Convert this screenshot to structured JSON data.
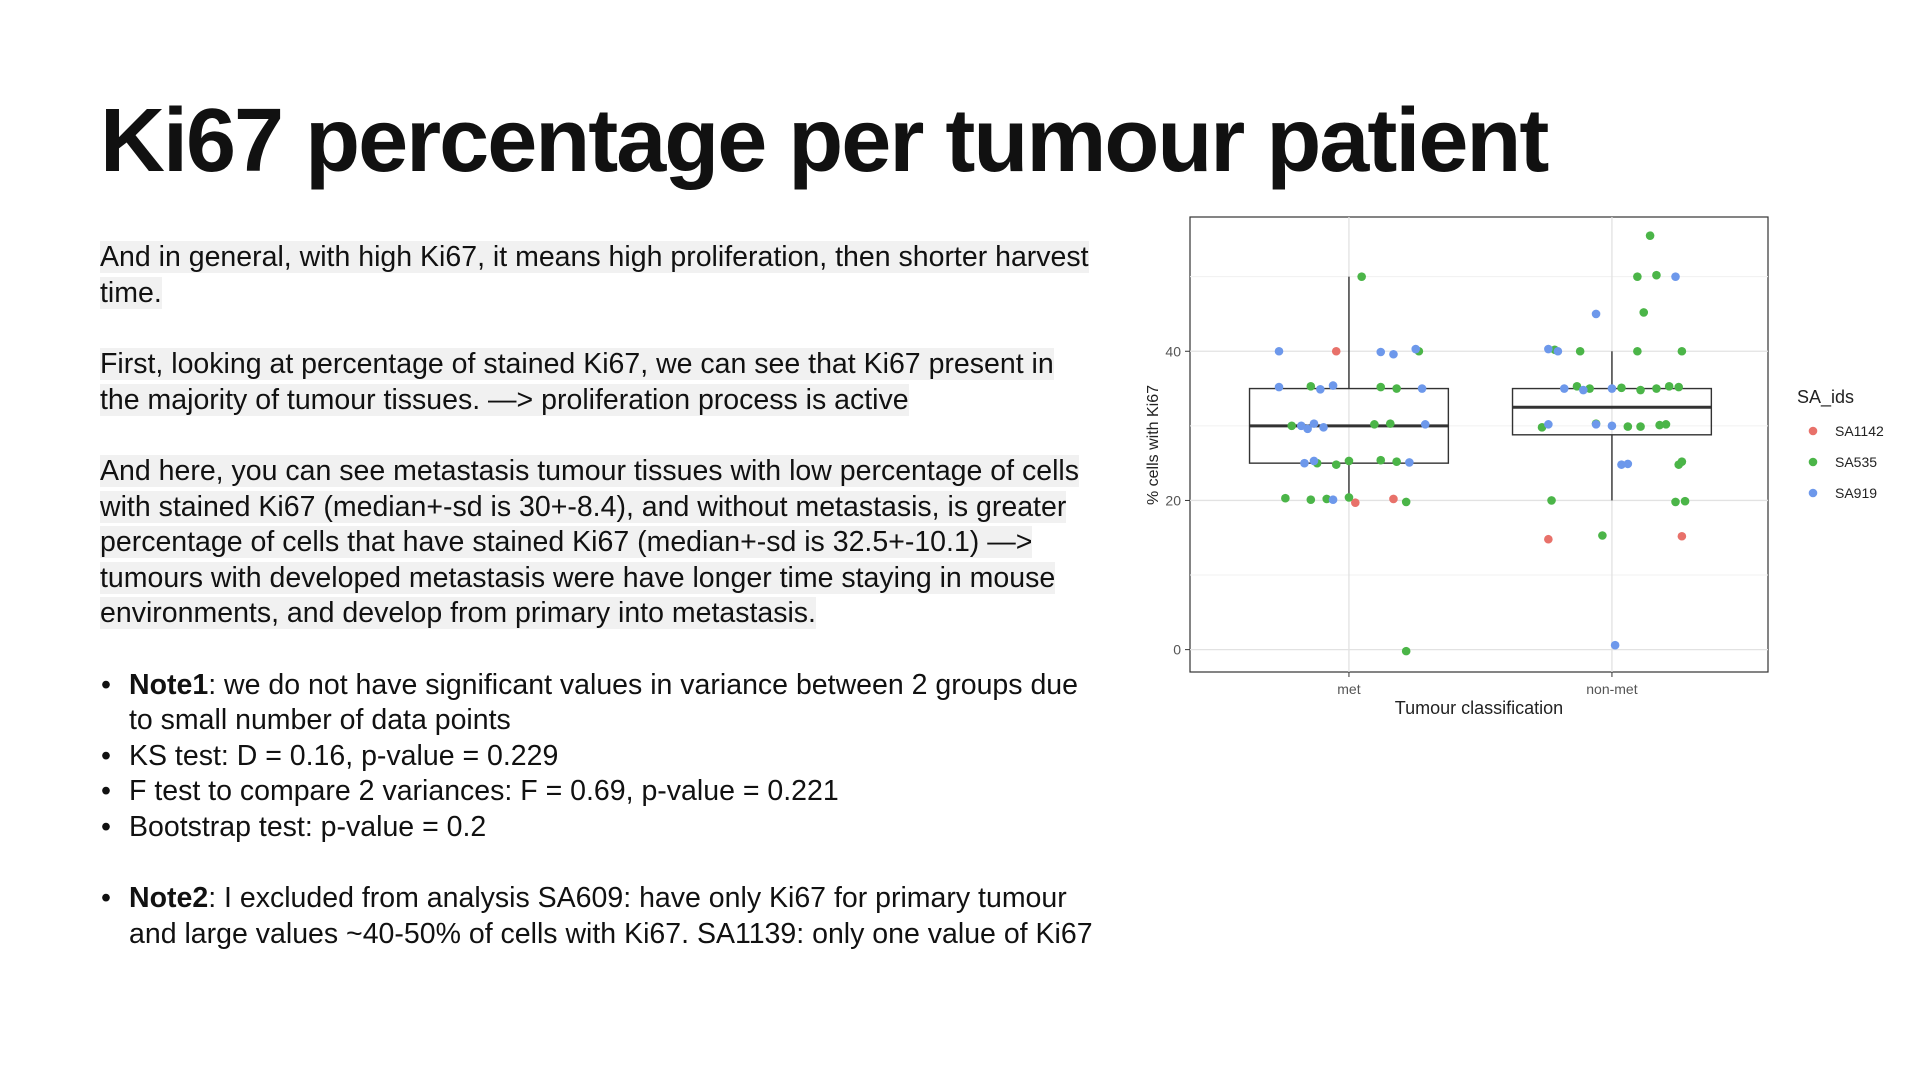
{
  "slide": {
    "title": "Ki67 percentage per tumour patient",
    "paragraphs": [
      "And in general, with high Ki67, it means high proliferation, then shorter harvest time.",
      "First, looking at percentage of stained Ki67, we can see that Ki67 present in the majority of tumour tissues. —> proliferation process is active",
      "And here, you can see metastasis tumour tissues with low percentage of cells with stained Ki67 (median+-sd is 30+-8.4), and without metastasis, is greater percentage of cells that have stained Ki67 (median+-sd is 32.5+-10.1) —> tumours with developed metastasis were have longer time staying in mouse environments, and develop from primary into metastasis."
    ],
    "note1": {
      "label": "Note1",
      "text": ": we do not have significant values in variance between 2 groups due to small number of data points"
    },
    "bullets": [
      "KS test: D = 0.16, p-value = 0.229",
      "F test to compare 2 variances: F = 0.69, p-value = 0.221",
      "Bootstrap test: p-value = 0.2"
    ],
    "note2": {
      "label": "Note2",
      "text": ": I excluded from analysis SA609: have only Ki67 for primary tumour and large values ~40-50% of cells with Ki67. SA1139: only one value of Ki67"
    }
  },
  "chart_data": {
    "type": "boxplot_with_jitter",
    "xlabel": "Tumour classification",
    "ylabel": "% cells with Ki67",
    "categories": [
      "met",
      "non-met"
    ],
    "ylim": [
      -3,
      58
    ],
    "yticks": [
      0,
      20,
      40
    ],
    "grid": true,
    "legend": {
      "title": "SA_ids",
      "position": "right"
    },
    "series_colors": {
      "SA1142": "#e8716a",
      "SA535": "#4bb548",
      "SA919": "#6d98eb"
    },
    "boxes": [
      {
        "category": "met",
        "q1": 25,
        "median": 30,
        "q3": 35,
        "whisker_low": 20,
        "whisker_high": 50
      },
      {
        "category": "non-met",
        "q1": 28.8,
        "median": 32.5,
        "q3": 35,
        "whisker_low": 20,
        "whisker_high": 40
      }
    ],
    "points": [
      {
        "category": "met",
        "series": "SA1142",
        "offset": -0.04,
        "y": 40
      },
      {
        "category": "met",
        "series": "SA1142",
        "offset": 0.02,
        "y": 19.7
      },
      {
        "category": "met",
        "series": "SA1142",
        "offset": 0.14,
        "y": 20.2
      },
      {
        "category": "met",
        "series": "SA535",
        "offset": 0.04,
        "y": 50
      },
      {
        "category": "met",
        "series": "SA535",
        "offset": 0.22,
        "y": 40
      },
      {
        "category": "met",
        "series": "SA535",
        "offset": -0.12,
        "y": 35.3
      },
      {
        "category": "met",
        "series": "SA535",
        "offset": 0.1,
        "y": 35.2
      },
      {
        "category": "met",
        "series": "SA535",
        "offset": 0.15,
        "y": 35
      },
      {
        "category": "met",
        "series": "SA535",
        "offset": -0.18,
        "y": 30
      },
      {
        "category": "met",
        "series": "SA535",
        "offset": 0.08,
        "y": 30.2
      },
      {
        "category": "met",
        "series": "SA535",
        "offset": 0.13,
        "y": 30.3
      },
      {
        "category": "met",
        "series": "SA535",
        "offset": -0.1,
        "y": 25
      },
      {
        "category": "met",
        "series": "SA535",
        "offset": -0.04,
        "y": 24.8
      },
      {
        "category": "met",
        "series": "SA535",
        "offset": 0.0,
        "y": 25.3
      },
      {
        "category": "met",
        "series": "SA535",
        "offset": 0.1,
        "y": 25.4
      },
      {
        "category": "met",
        "series": "SA535",
        "offset": 0.15,
        "y": 25.2
      },
      {
        "category": "met",
        "series": "SA535",
        "offset": -0.2,
        "y": 20.3
      },
      {
        "category": "met",
        "series": "SA535",
        "offset": -0.12,
        "y": 20.1
      },
      {
        "category": "met",
        "series": "SA535",
        "offset": -0.07,
        "y": 20.2
      },
      {
        "category": "met",
        "series": "SA535",
        "offset": 0.0,
        "y": 20.4
      },
      {
        "category": "met",
        "series": "SA535",
        "offset": 0.18,
        "y": 19.8
      },
      {
        "category": "met",
        "series": "SA535",
        "offset": 0.18,
        "y": -0.2
      },
      {
        "category": "met",
        "series": "SA919",
        "offset": -0.22,
        "y": 40
      },
      {
        "category": "met",
        "series": "SA919",
        "offset": 0.1,
        "y": 39.9
      },
      {
        "category": "met",
        "series": "SA919",
        "offset": 0.14,
        "y": 39.6
      },
      {
        "category": "met",
        "series": "SA919",
        "offset": 0.21,
        "y": 40.3
      },
      {
        "category": "met",
        "series": "SA919",
        "offset": -0.22,
        "y": 35.2
      },
      {
        "category": "met",
        "series": "SA919",
        "offset": -0.09,
        "y": 34.9
      },
      {
        "category": "met",
        "series": "SA919",
        "offset": -0.05,
        "y": 35.4
      },
      {
        "category": "met",
        "series": "SA919",
        "offset": 0.23,
        "y": 35
      },
      {
        "category": "met",
        "series": "SA919",
        "offset": -0.15,
        "y": 30
      },
      {
        "category": "met",
        "series": "SA919",
        "offset": -0.13,
        "y": 29.6
      },
      {
        "category": "met",
        "series": "SA919",
        "offset": -0.11,
        "y": 30.3
      },
      {
        "category": "met",
        "series": "SA919",
        "offset": -0.08,
        "y": 29.8
      },
      {
        "category": "met",
        "series": "SA919",
        "offset": 0.24,
        "y": 30.2
      },
      {
        "category": "met",
        "series": "SA919",
        "offset": -0.14,
        "y": 25
      },
      {
        "category": "met",
        "series": "SA919",
        "offset": -0.11,
        "y": 25.3
      },
      {
        "category": "met",
        "series": "SA919",
        "offset": 0.19,
        "y": 25.1
      },
      {
        "category": "met",
        "series": "SA919",
        "offset": -0.05,
        "y": 20.1
      },
      {
        "category": "non-met",
        "series": "SA1142",
        "offset": -0.2,
        "y": 14.8
      },
      {
        "category": "non-met",
        "series": "SA1142",
        "offset": 0.22,
        "y": 15.2
      },
      {
        "category": "non-met",
        "series": "SA535",
        "offset": 0.12,
        "y": 55.5
      },
      {
        "category": "non-met",
        "series": "SA535",
        "offset": 0.08,
        "y": 50
      },
      {
        "category": "non-met",
        "series": "SA535",
        "offset": 0.14,
        "y": 50.2
      },
      {
        "category": "non-met",
        "series": "SA535",
        "offset": 0.1,
        "y": 45.2
      },
      {
        "category": "non-met",
        "series": "SA535",
        "offset": -0.18,
        "y": 40.2
      },
      {
        "category": "non-met",
        "series": "SA535",
        "offset": -0.1,
        "y": 40
      },
      {
        "category": "non-met",
        "series": "SA535",
        "offset": 0.08,
        "y": 40
      },
      {
        "category": "non-met",
        "series": "SA535",
        "offset": 0.22,
        "y": 40
      },
      {
        "category": "non-met",
        "series": "SA535",
        "offset": -0.11,
        "y": 35.3
      },
      {
        "category": "non-met",
        "series": "SA535",
        "offset": -0.07,
        "y": 35
      },
      {
        "category": "non-met",
        "series": "SA535",
        "offset": 0.03,
        "y": 35.1
      },
      {
        "category": "non-met",
        "series": "SA535",
        "offset": 0.09,
        "y": 34.8
      },
      {
        "category": "non-met",
        "series": "SA535",
        "offset": 0.14,
        "y": 35
      },
      {
        "category": "non-met",
        "series": "SA535",
        "offset": 0.18,
        "y": 35.3
      },
      {
        "category": "non-met",
        "series": "SA535",
        "offset": 0.21,
        "y": 35.2
      },
      {
        "category": "non-met",
        "series": "SA535",
        "offset": -0.22,
        "y": 29.8
      },
      {
        "category": "non-met",
        "series": "SA535",
        "offset": -0.05,
        "y": 30.3
      },
      {
        "category": "non-met",
        "series": "SA535",
        "offset": 0.05,
        "y": 29.9
      },
      {
        "category": "non-met",
        "series": "SA535",
        "offset": 0.09,
        "y": 29.9
      },
      {
        "category": "non-met",
        "series": "SA535",
        "offset": 0.15,
        "y": 30.1
      },
      {
        "category": "non-met",
        "series": "SA535",
        "offset": 0.17,
        "y": 30.2
      },
      {
        "category": "non-met",
        "series": "SA535",
        "offset": 0.22,
        "y": 25.2
      },
      {
        "category": "non-met",
        "series": "SA535",
        "offset": 0.21,
        "y": 24.8
      },
      {
        "category": "non-met",
        "series": "SA535",
        "offset": -0.19,
        "y": 20
      },
      {
        "category": "non-met",
        "series": "SA535",
        "offset": 0.2,
        "y": 19.8
      },
      {
        "category": "non-met",
        "series": "SA535",
        "offset": 0.23,
        "y": 19.9
      },
      {
        "category": "non-met",
        "series": "SA535",
        "offset": -0.03,
        "y": 15.3
      },
      {
        "category": "non-met",
        "series": "SA919",
        "offset": 0.2,
        "y": 50
      },
      {
        "category": "non-met",
        "series": "SA919",
        "offset": -0.05,
        "y": 45
      },
      {
        "category": "non-met",
        "series": "SA919",
        "offset": -0.2,
        "y": 40.3
      },
      {
        "category": "non-met",
        "series": "SA919",
        "offset": -0.17,
        "y": 40
      },
      {
        "category": "non-met",
        "series": "SA919",
        "offset": -0.15,
        "y": 35
      },
      {
        "category": "non-met",
        "series": "SA919",
        "offset": -0.09,
        "y": 34.8
      },
      {
        "category": "non-met",
        "series": "SA919",
        "offset": 0.0,
        "y": 35
      },
      {
        "category": "non-met",
        "series": "SA919",
        "offset": -0.2,
        "y": 30.2
      },
      {
        "category": "non-met",
        "series": "SA919",
        "offset": -0.05,
        "y": 30.2
      },
      {
        "category": "non-met",
        "series": "SA919",
        "offset": 0.0,
        "y": 30
      },
      {
        "category": "non-met",
        "series": "SA919",
        "offset": 0.03,
        "y": 24.8
      },
      {
        "category": "non-met",
        "series": "SA919",
        "offset": 0.05,
        "y": 24.9
      },
      {
        "category": "non-met",
        "series": "SA919",
        "offset": 0.01,
        "y": 0.6
      }
    ]
  }
}
